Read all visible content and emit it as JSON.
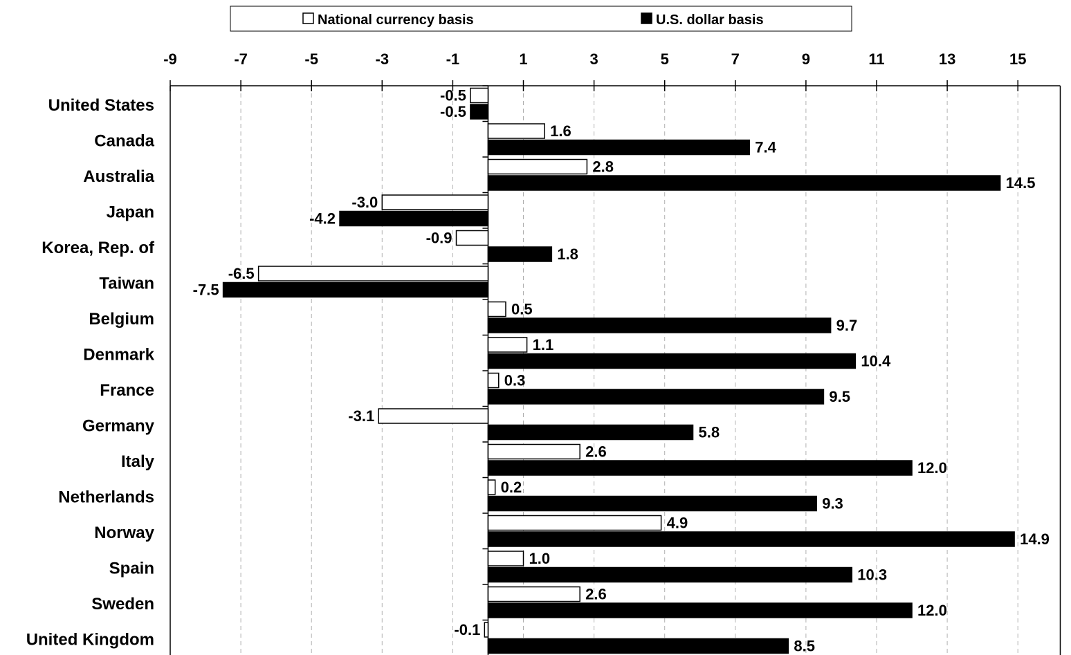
{
  "chart_data": {
    "type": "bar",
    "orientation": "horizontal",
    "categories": [
      "United States",
      "Canada",
      "Australia",
      "Japan",
      "Korea, Rep. of",
      "Taiwan",
      "Belgium",
      "Denmark",
      "France",
      "Germany",
      "Italy",
      "Netherlands",
      "Norway",
      "Spain",
      "Sweden",
      "United Kingdom"
    ],
    "series": [
      {
        "name": "National currency basis",
        "color": "#ffffff",
        "values": [
          -0.5,
          1.6,
          2.8,
          -3.0,
          -0.9,
          -6.5,
          0.5,
          1.1,
          0.3,
          -3.1,
          2.6,
          0.2,
          4.9,
          1.0,
          2.6,
          -0.1
        ],
        "labels": [
          "-0.5",
          "1.6",
          "2.8",
          "-3.0",
          "-0.9",
          "-6.5",
          "0.5",
          "1.1",
          "0.3",
          "-3.1",
          "2.6",
          "0.2",
          "4.9",
          "1.0",
          "2.6",
          "-0.1"
        ]
      },
      {
        "name": "U.S. dollar basis",
        "color": "#000000",
        "values": [
          -0.5,
          7.4,
          14.5,
          -4.2,
          1.8,
          -7.5,
          9.7,
          10.4,
          9.5,
          5.8,
          12.0,
          9.3,
          14.9,
          10.3,
          12.0,
          8.5
        ],
        "labels": [
          "-0.5",
          "7.4",
          "14.5",
          "-4.2",
          "1.8",
          "-7.5",
          "9.7",
          "10.4",
          "9.5",
          "5.8",
          "12.0",
          "9.3",
          "14.9",
          "10.3",
          "12.0",
          "8.5"
        ]
      }
    ],
    "xlim": [
      -9,
      16.2
    ],
    "ticks": [
      "-9",
      "-7",
      "-5",
      "-3",
      "-1",
      "1",
      "3",
      "5",
      "7",
      "9",
      "11",
      "13",
      "15"
    ],
    "axis_position": "top",
    "grid": "vertical-dashed",
    "legend_position": "top"
  }
}
